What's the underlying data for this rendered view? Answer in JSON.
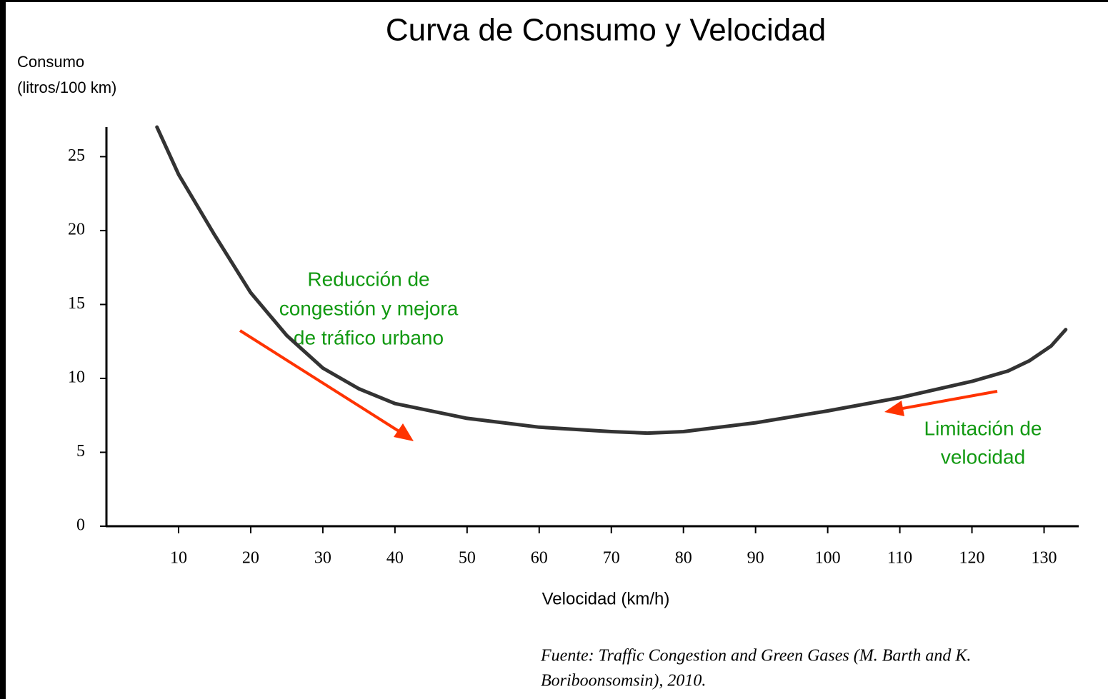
{
  "chart_data": {
    "type": "line",
    "title": "Curva de Consumo y Velocidad",
    "ylabel": [
      "Consumo",
      "(litros/100 km)"
    ],
    "xlabel": "Velocidad (km/h)",
    "x": [
      7,
      10,
      15,
      20,
      25,
      30,
      35,
      40,
      50,
      60,
      70,
      75,
      80,
      90,
      100,
      110,
      120,
      125,
      128,
      131,
      133
    ],
    "series": [
      {
        "color": "#333333",
        "values": [
          27,
          23.8,
          19.7,
          15.8,
          12.9,
          10.7,
          9.3,
          8.3,
          7.3,
          6.7,
          6.4,
          6.3,
          6.4,
          7.0,
          7.8,
          8.7,
          9.8,
          10.5,
          11.2,
          12.2,
          13.3
        ]
      }
    ],
    "xlim": [
      0,
      135
    ],
    "xticks": [
      10,
      20,
      30,
      40,
      50,
      60,
      70,
      80,
      90,
      100,
      110,
      120,
      130
    ],
    "ylim": [
      0,
      27
    ],
    "yticks": [
      0,
      5,
      10,
      15,
      20,
      25
    ],
    "annotations": [
      [
        "Reducción de",
        "congestión y mejora",
        "de tráfico urbano"
      ],
      [
        "Limitación de",
        "velocidad"
      ]
    ],
    "source": [
      "Fuente: Traffic Congestion and Green Gases (M. Barth and K.",
      "Boriboonsomsin), 2010."
    ]
  }
}
